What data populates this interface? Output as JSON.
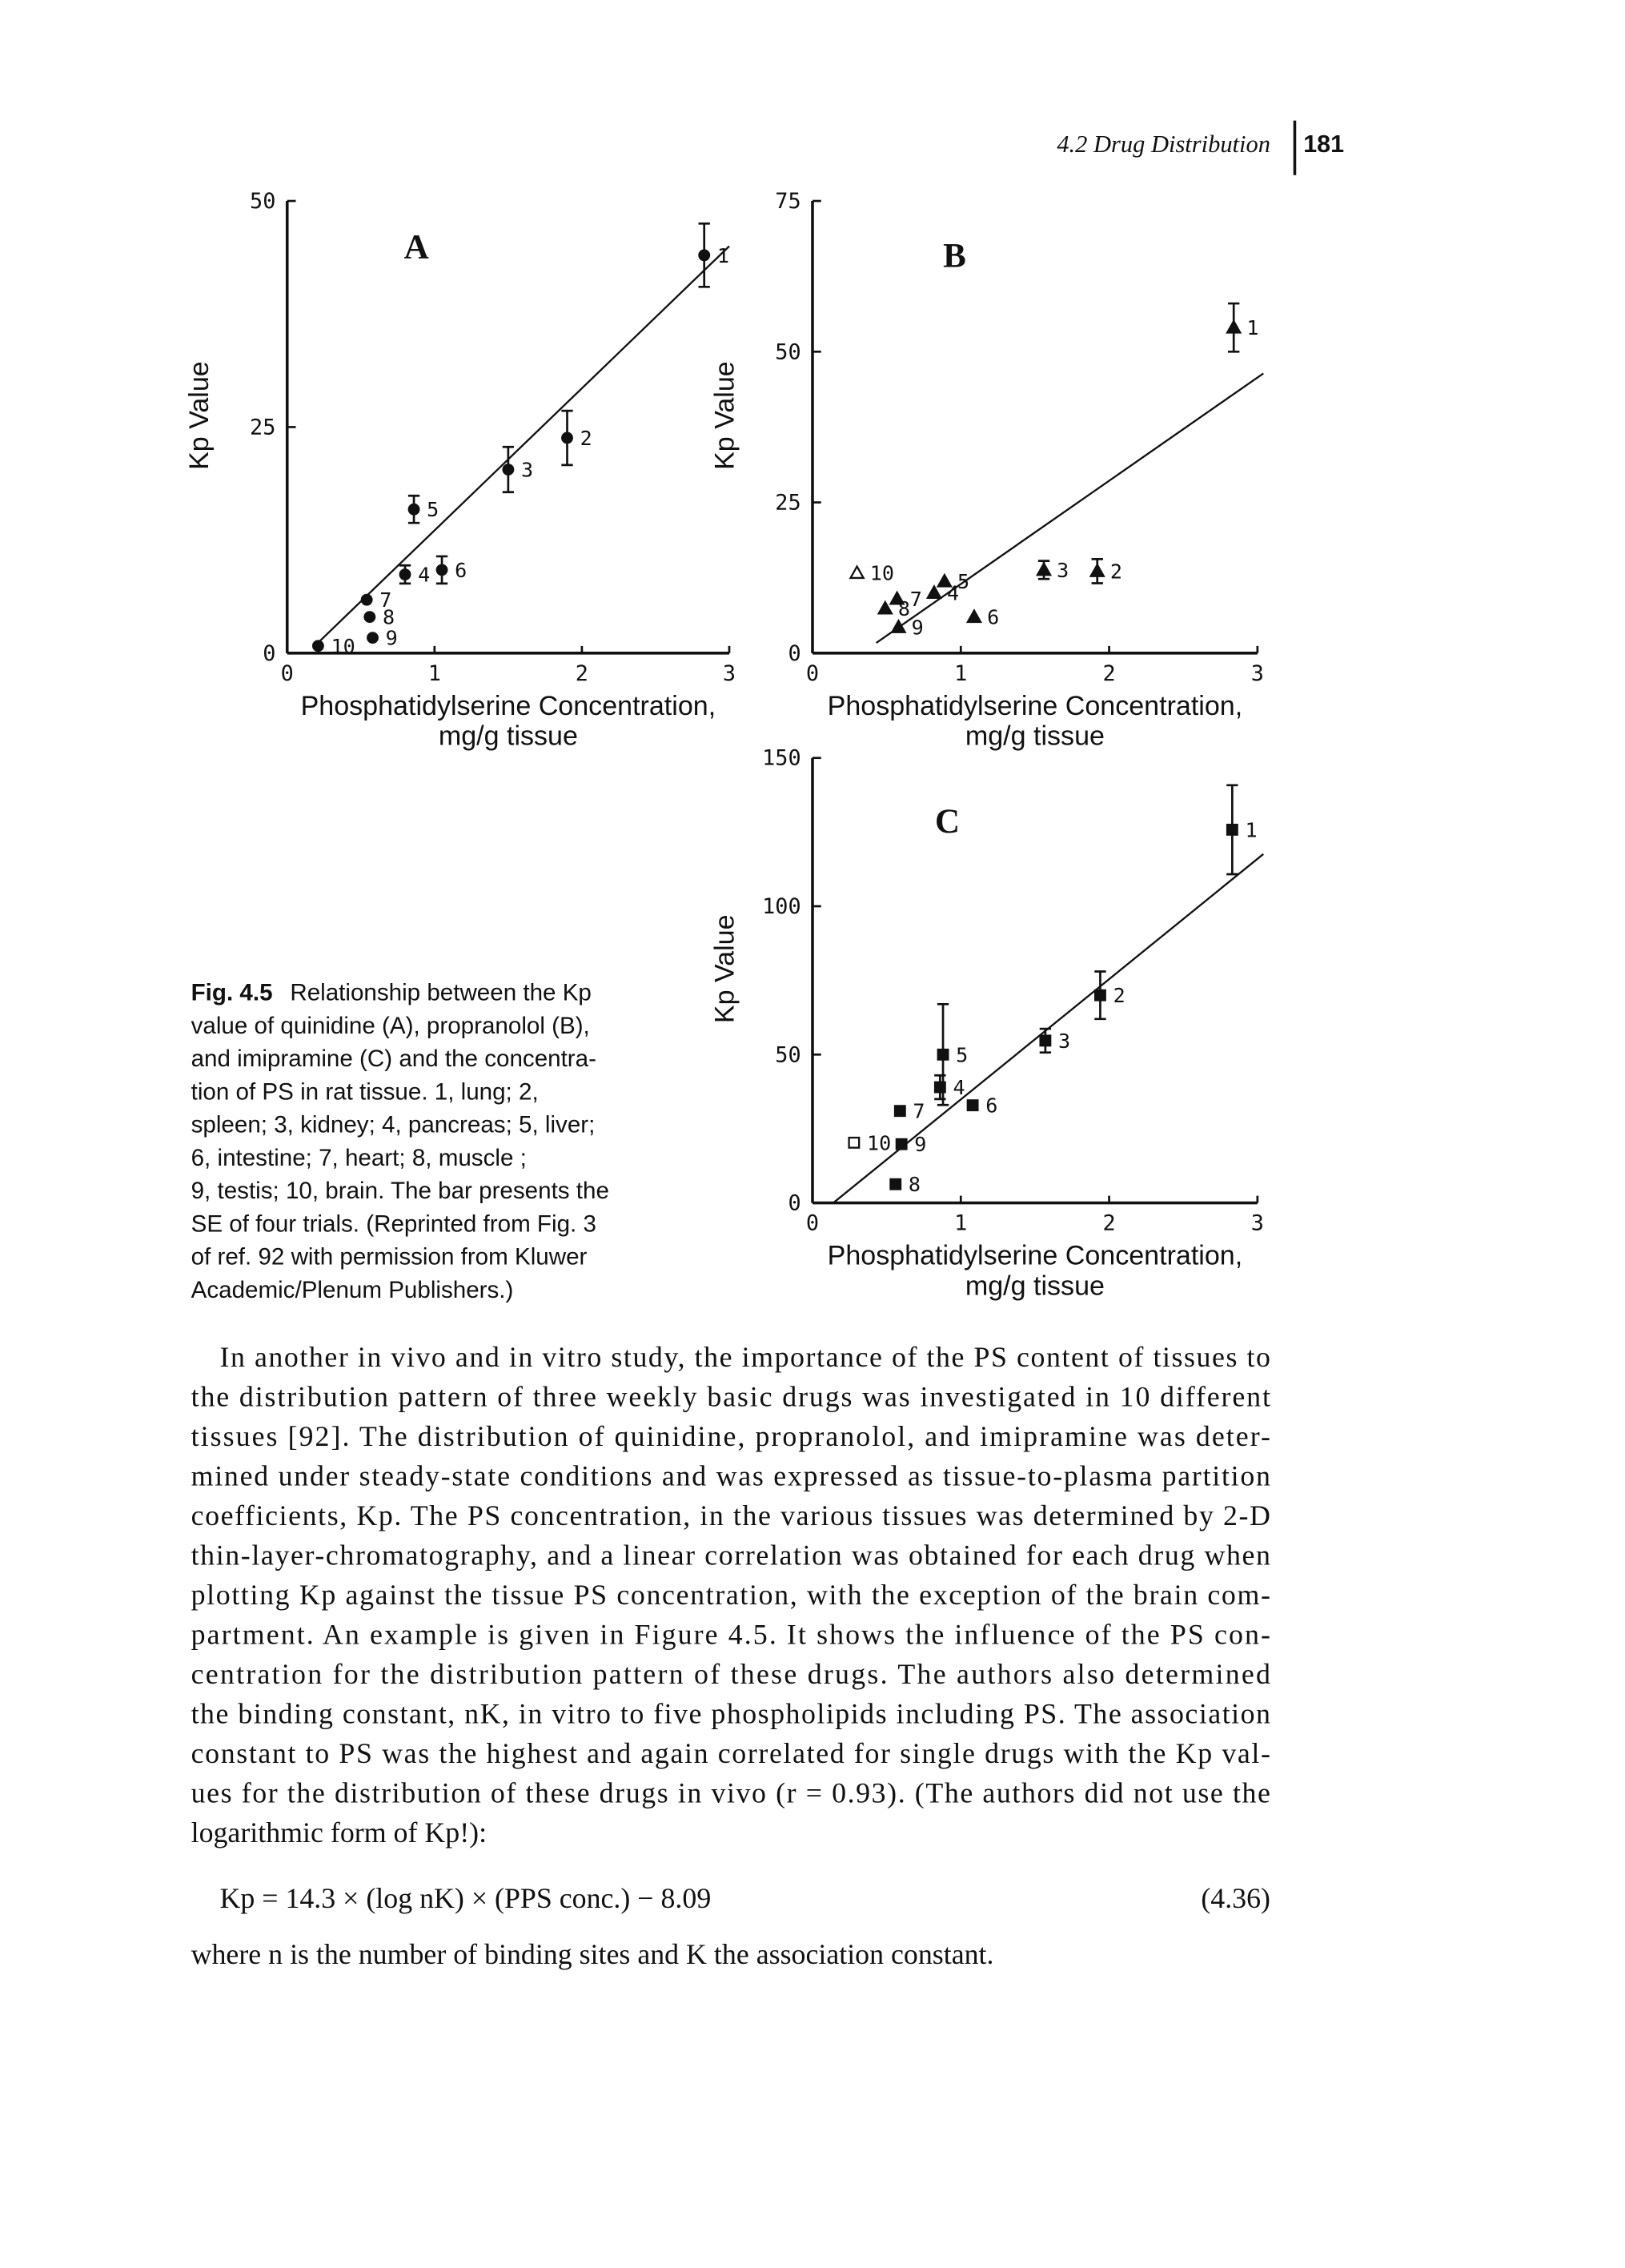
{
  "header": {
    "section": "4.2 Drug Distribution",
    "page_number": "181"
  },
  "chart_data": [
    {
      "type": "scatter",
      "panel": "A",
      "xlabel": [
        "Phosphatidylserine Concentration,",
        "mg/g tissue"
      ],
      "ylabel": "Kp Value",
      "xlim": [
        0,
        3
      ],
      "ylim": [
        0,
        50
      ],
      "xticks": [
        0,
        1,
        2,
        3
      ],
      "yticks": [
        0,
        25,
        50
      ],
      "marker": "circle",
      "color": "#111",
      "point_labels": [
        "1",
        "2",
        "3",
        "4",
        "5",
        "6",
        "7",
        "8",
        "9",
        "10"
      ],
      "marker_fill": [
        "filled",
        "filled",
        "filled",
        "filled",
        "filled",
        "filled",
        "filled",
        "filled",
        "filled",
        "filled"
      ],
      "x": [
        2.83,
        1.9,
        1.5,
        0.8,
        0.86,
        1.05,
        0.54,
        0.56,
        0.58,
        0.21
      ],
      "y": [
        44,
        23.8,
        20.3,
        8.7,
        15.9,
        9.2,
        5.9,
        4,
        1.7,
        0.8
      ],
      "err": [
        3.5,
        3,
        2.5,
        1,
        1.5,
        1.5,
        null,
        null,
        null,
        null
      ],
      "fit": {
        "x": [
          0.2,
          3.0
        ],
        "y": [
          1,
          45
        ]
      }
    },
    {
      "type": "scatter",
      "panel": "B",
      "xlabel": [
        "Phosphatidylserine Concentration,",
        "mg/g tissue"
      ],
      "ylabel": "Kp Value",
      "xlim": [
        0,
        3
      ],
      "ylim": [
        0,
        75
      ],
      "xticks": [
        0,
        1,
        2,
        3
      ],
      "yticks": [
        0,
        25,
        50,
        75
      ],
      "marker": "triangle",
      "color": "#111",
      "point_labels": [
        "1",
        "2",
        "3",
        "4",
        "5",
        "6",
        "7",
        "8",
        "9",
        "10"
      ],
      "marker_fill": [
        "filled",
        "filled",
        "filled",
        "filled",
        "filled",
        "filled",
        "filled",
        "filled",
        "filled",
        "open"
      ],
      "x": [
        2.84,
        1.92,
        1.56,
        0.82,
        0.89,
        1.09,
        0.57,
        0.49,
        0.58,
        0.3
      ],
      "y": [
        54,
        13.6,
        13.8,
        10,
        11.9,
        6,
        9,
        7.4,
        4.3,
        13.3
      ],
      "err": [
        4,
        2,
        1.5,
        null,
        null,
        null,
        null,
        null,
        null,
        null
      ],
      "fit": {
        "x": [
          0.43,
          3.04
        ],
        "y": [
          1.7,
          46.4
        ]
      }
    },
    {
      "type": "scatter",
      "panel": "C",
      "xlabel": [
        "Phosphatidylserine Concentration,",
        "mg/g tissue"
      ],
      "ylabel": "Kp Value",
      "xlim": [
        0,
        3
      ],
      "ylim": [
        0,
        150
      ],
      "xticks": [
        0,
        1,
        2,
        3
      ],
      "yticks": [
        0,
        50,
        100,
        150
      ],
      "marker": "square",
      "color": "#111",
      "point_labels": [
        "1",
        "2",
        "3",
        "4",
        "5",
        "6",
        "7",
        "8",
        "9",
        "10"
      ],
      "marker_fill": [
        "filled",
        "filled",
        "filled",
        "filled",
        "filled",
        "filled",
        "filled",
        "filled",
        "filled",
        "open"
      ],
      "x": [
        2.83,
        1.94,
        1.57,
        0.86,
        0.88,
        1.08,
        0.59,
        0.56,
        0.6,
        0.28
      ],
      "y": [
        125.8,
        70,
        54.7,
        39,
        50,
        32.9,
        31,
        6.3,
        19.8,
        20.3
      ],
      "err": [
        15,
        8,
        4,
        4,
        17,
        null,
        null,
        null,
        null,
        null
      ],
      "fit": {
        "x": [
          0.14,
          3.04
        ],
        "y": [
          0,
          117.6
        ]
      }
    }
  ],
  "caption": {
    "label": "Fig. 4.5",
    "lines": [
      "Relationship between the Kp",
      "value of quinidine (A), propranolol (B),",
      "and imipramine (C) and the concentra-",
      "tion of PS in rat tissue. 1, lung; 2,",
      "spleen; 3, kidney; 4, pancreas; 5, liver;",
      "6, intestine; 7, heart; 8, muscle ;",
      "9, testis; 10, brain. The bar presents the",
      "SE of four trials. (Reprinted from Fig. 3",
      "of ref. 92 with permission from Kluwer",
      "Academic/Plenum Publishers.)"
    ]
  },
  "body": {
    "lines": [
      "In another in vivo and in vitro study, the importance of the PS content of tissues to",
      "the distribution pattern of three weekly basic drugs was investigated in 10 different",
      "tissues [92]. The distribution of quinidine, propranolol, and imipramine was deter-",
      "mined under steady-state conditions and was expressed as tissue-to-plasma partition",
      "coefficients, Kp. The PS concentration, in the various tissues was determined by 2-D",
      "thin-layer-chromatography, and a linear correlation was obtained for each drug when",
      "plotting Kp against the tissue PS concentration, with the exception of the brain com-",
      "partment. An example is given in Figure 4.5. It shows the influence of the PS con-",
      "centration for the distribution pattern of these drugs. The authors also determined",
      "the binding constant, nK, in vitro to five phospholipids including PS. The association",
      "constant to PS was the highest and again correlated for single drugs with the Kp val-",
      "ues for the distribution of these drugs in vivo (r = 0.93). (The authors did not use the",
      "logarithmic form of Kp!):"
    ],
    "equation": "Kp = 14.3 × (log nK) × (PPS conc.) − 8.09",
    "equation_number": "(4.36)",
    "after": "where n is the number of binding sites and K the association constant."
  }
}
